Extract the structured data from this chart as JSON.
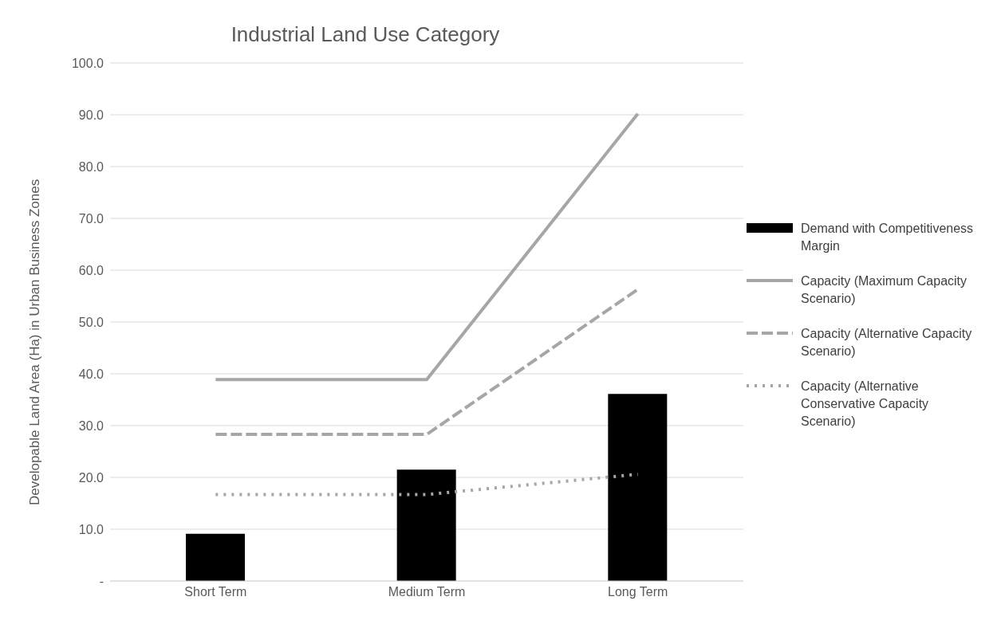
{
  "chart_data": {
    "type": "bar",
    "title": "Industrial Land Use Category",
    "ylabel": "Developable Land Area (Ha) in Urban Business Zones",
    "categories": [
      "Short Term",
      "Medium Term",
      "Long Term"
    ],
    "series": [
      {
        "name": "Demand with Competitiveness Margin",
        "color": "#000000",
        "values": [
          9.1,
          21.5,
          36.1
        ]
      },
      {
        "name": "Capacity (Maximum Capacity Scenario)",
        "type": "line",
        "line_style": "solid",
        "color": "#a6a6a6",
        "values": [
          38.9,
          38.9,
          90.2
        ]
      },
      {
        "name": "Capacity (Alternative Capacity Scenario)",
        "type": "line",
        "line_style": "dashed",
        "color": "#a6a6a6",
        "values": [
          28.3,
          28.3,
          56.3
        ]
      },
      {
        "name": "Capacity (Alternative Conservative Capacity Scenario)",
        "type": "line",
        "line_style": "dotted",
        "color": "#a6a6a6",
        "values": [
          16.7,
          16.7,
          20.6
        ]
      }
    ],
    "ylim": [
      0,
      100
    ],
    "yticks": [
      {
        "value": 0,
        "label": "-"
      },
      {
        "value": 10,
        "label": "10.0"
      },
      {
        "value": 20,
        "label": "20.0"
      },
      {
        "value": 30,
        "label": "30.0"
      },
      {
        "value": 40,
        "label": "40.0"
      },
      {
        "value": 50,
        "label": "50.0"
      },
      {
        "value": 60,
        "label": "60.0"
      },
      {
        "value": 70,
        "label": "70.0"
      },
      {
        "value": 80,
        "label": "80.0"
      },
      {
        "value": 90,
        "label": "90.0"
      },
      {
        "value": 100,
        "label": "100.0"
      }
    ],
    "grid": "y",
    "legend": "right",
    "marker": "none"
  }
}
